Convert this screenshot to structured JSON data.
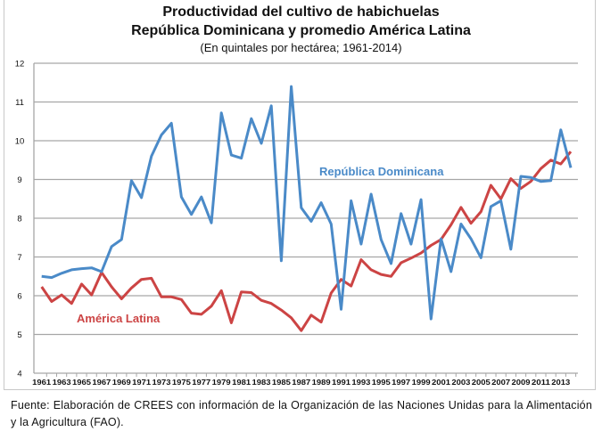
{
  "chart_data": {
    "type": "line",
    "title": "Productividad del cultivo de habichuelas",
    "title_line2": "República Dominicana y promedio América Latina",
    "subtitle": "(En quintales por hectárea; 1961-2014)",
    "xlabel": "",
    "ylabel": "",
    "ylim": [
      4,
      12
    ],
    "yticks": [
      4,
      5,
      6,
      7,
      8,
      9,
      10,
      11,
      12
    ],
    "x": [
      1961,
      1962,
      1963,
      1964,
      1965,
      1966,
      1967,
      1968,
      1969,
      1970,
      1971,
      1972,
      1973,
      1974,
      1975,
      1976,
      1977,
      1978,
      1979,
      1980,
      1981,
      1982,
      1983,
      1984,
      1985,
      1986,
      1987,
      1988,
      1989,
      1990,
      1991,
      1992,
      1993,
      1994,
      1995,
      1996,
      1997,
      1998,
      1999,
      2000,
      2001,
      2002,
      2003,
      2004,
      2005,
      2006,
      2007,
      2008,
      2009,
      2010,
      2011,
      2012,
      2013,
      2014
    ],
    "xtick_labels": [
      "1961",
      "1963",
      "1965",
      "1967",
      "1969",
      "1971",
      "1973",
      "1975",
      "1977",
      "1979",
      "1981",
      "1983",
      "1985",
      "1987",
      "1989",
      "1991",
      "1993",
      "1995",
      "1997",
      "1999",
      "2001",
      "2003",
      "2005",
      "2007",
      "2009",
      "2011",
      "2013"
    ],
    "grid": true,
    "series": [
      {
        "name": "República Dominicana",
        "color": "#4a8ac8",
        "values": [
          6.5,
          6.47,
          6.58,
          6.67,
          6.7,
          6.72,
          6.62,
          7.27,
          7.45,
          8.97,
          8.53,
          9.6,
          10.15,
          10.45,
          8.55,
          8.1,
          8.55,
          7.88,
          10.72,
          9.63,
          9.55,
          10.57,
          9.93,
          10.9,
          6.9,
          11.4,
          8.27,
          7.92,
          8.4,
          7.85,
          5.65,
          8.45,
          7.33,
          8.62,
          7.45,
          6.83,
          8.12,
          7.33,
          8.48,
          5.4,
          7.47,
          6.62,
          7.85,
          7.47,
          6.98,
          8.3,
          8.45,
          7.2,
          9.08,
          9.05,
          8.95,
          8.97,
          10.28,
          9.3
        ]
      },
      {
        "name": "América Latina",
        "color": "#cc4444",
        "values": [
          6.23,
          5.85,
          6.02,
          5.8,
          6.3,
          6.02,
          6.6,
          6.23,
          5.92,
          6.2,
          6.42,
          6.45,
          5.97,
          5.97,
          5.9,
          5.55,
          5.52,
          5.73,
          6.13,
          5.3,
          6.1,
          6.08,
          5.88,
          5.8,
          5.63,
          5.43,
          5.1,
          5.5,
          5.32,
          6.07,
          6.42,
          6.25,
          6.93,
          6.67,
          6.55,
          6.5,
          6.85,
          6.97,
          7.1,
          7.3,
          7.45,
          7.83,
          8.28,
          7.87,
          8.17,
          8.85,
          8.5,
          9.02,
          8.77,
          8.95,
          9.28,
          9.5,
          9.4,
          9.72
        ]
      }
    ]
  },
  "source": "Fuente: Elaboración de CREES con información de la Organización de las Naciones Unidas para la Alimentación y la Agricultura (FAO)."
}
